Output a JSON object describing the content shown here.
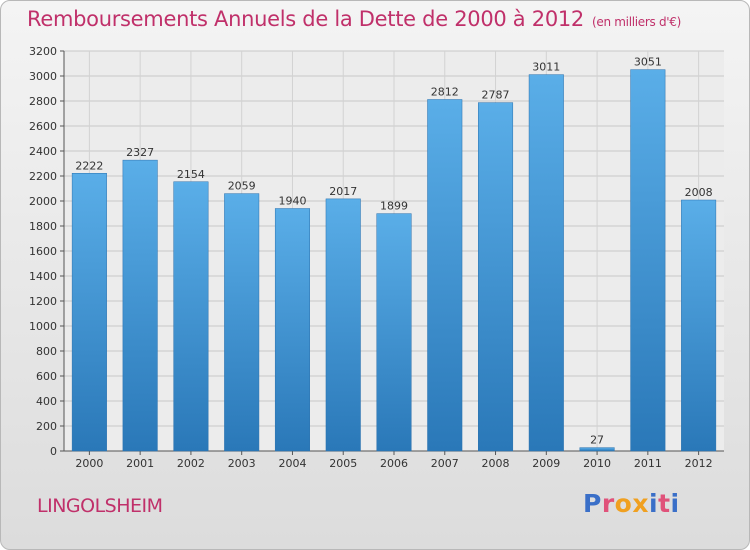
{
  "header": {
    "title": "Remboursements Annuels de la Dette de 2000 à 2012",
    "unit": "(en milliers d'€)"
  },
  "footer": {
    "commune": "LINGOLSHEIM",
    "logo_text": "Proxiti",
    "logo_colors": [
      "#3a6fc8",
      "#e0527a",
      "#f0a020",
      "#f0a020",
      "#3a6fc8",
      "#e0527a",
      "#3a6fc8"
    ]
  },
  "chart_data": {
    "type": "bar",
    "title": "Remboursements Annuels de la Dette de 2000 à 2012",
    "subtitle": "(en milliers d'€)",
    "xlabel": "",
    "ylabel": "",
    "categories": [
      "2000",
      "2001",
      "2002",
      "2003",
      "2004",
      "2005",
      "2006",
      "2007",
      "2008",
      "2009",
      "2010",
      "2011",
      "2012"
    ],
    "values": [
      2222,
      2327,
      2154,
      2059,
      1940,
      2017,
      1899,
      2812,
      2787,
      3011,
      27,
      3051,
      2008
    ],
    "ylim": [
      0,
      3200
    ],
    "yticks": [
      0,
      200,
      400,
      600,
      800,
      1000,
      1200,
      1400,
      1600,
      1800,
      2000,
      2200,
      2400,
      2600,
      2800,
      3000,
      3200
    ],
    "grid": true,
    "data_labels": true,
    "bar_color_top": "#5aaee8",
    "bar_color_bottom": "#2a78b8",
    "text_color": "#c0306a"
  }
}
